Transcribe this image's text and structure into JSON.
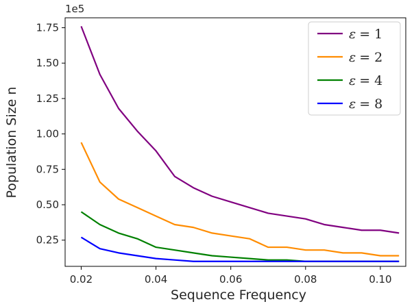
{
  "chart_data": {
    "type": "line",
    "xlabel": "Sequence Frequency",
    "ylabel": "Population Size n",
    "y_offset_text": "1e5",
    "xlim": [
      0.0157,
      0.1068
    ],
    "ylim": [
      0.065,
      1.82
    ],
    "x_ticks": [
      0.02,
      0.04,
      0.06,
      0.08,
      0.1
    ],
    "x_tick_labels": [
      "0.02",
      "0.04",
      "0.06",
      "0.08",
      "0.10"
    ],
    "y_ticks": [
      0.25,
      0.5,
      0.75,
      1.0,
      1.25,
      1.5,
      1.75
    ],
    "y_tick_labels": [
      "0.25",
      "0.50",
      "0.75",
      "1.00",
      "1.25",
      "1.50",
      "1.75"
    ],
    "legend_position": "top-right",
    "x": [
      0.02,
      0.025,
      0.03,
      0.035,
      0.04,
      0.045,
      0.05,
      0.055,
      0.06,
      0.065,
      0.07,
      0.075,
      0.08,
      0.085,
      0.09,
      0.095,
      0.1,
      0.105
    ],
    "series": [
      {
        "name": "ε = 1",
        "legend_var": "ε",
        "legend_eq": "= 1",
        "color": "#800080",
        "values": [
          1.76,
          1.42,
          1.18,
          1.02,
          0.88,
          0.7,
          0.62,
          0.56,
          0.52,
          0.48,
          0.44,
          0.42,
          0.4,
          0.36,
          0.34,
          0.32,
          0.32,
          0.3
        ]
      },
      {
        "name": "ε = 2",
        "legend_var": "ε",
        "legend_eq": "= 2",
        "color": "#ff8c00",
        "values": [
          0.94,
          0.66,
          0.54,
          0.48,
          0.42,
          0.36,
          0.34,
          0.3,
          0.28,
          0.26,
          0.2,
          0.2,
          0.18,
          0.18,
          0.16,
          0.16,
          0.14,
          0.14
        ]
      },
      {
        "name": "ε = 4",
        "legend_var": "ε",
        "legend_eq": "= 4",
        "color": "#008000",
        "values": [
          0.45,
          0.36,
          0.3,
          0.26,
          0.2,
          0.18,
          0.16,
          0.14,
          0.13,
          0.12,
          0.11,
          0.11,
          0.1,
          0.1,
          0.1,
          0.1,
          0.1,
          0.1
        ]
      },
      {
        "name": "ε = 8",
        "legend_var": "ε",
        "legend_eq": "= 8",
        "color": "#0000ff",
        "values": [
          0.27,
          0.19,
          0.16,
          0.14,
          0.12,
          0.11,
          0.1,
          0.1,
          0.1,
          0.1,
          0.1,
          0.1,
          0.1,
          0.1,
          0.1,
          0.1,
          0.1,
          0.1
        ]
      }
    ]
  }
}
